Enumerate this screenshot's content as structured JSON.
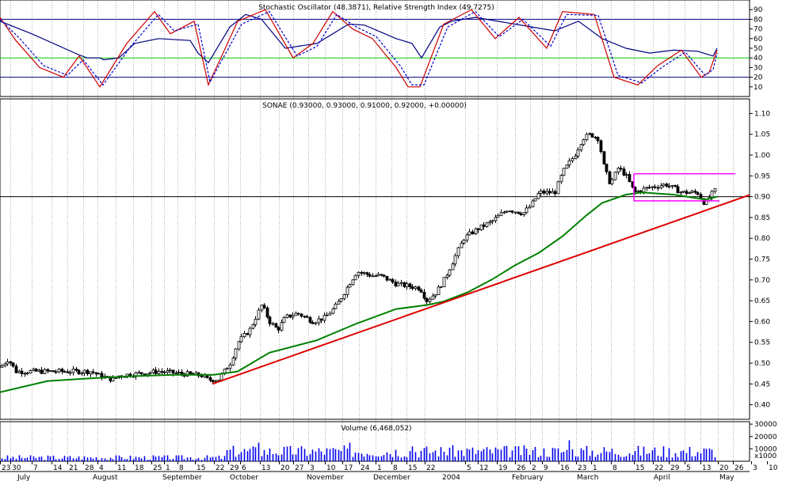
{
  "chart_data": [
    {
      "type": "line",
      "panel": "oscillator",
      "title": "Stochastic Oscillator (48.3871), Relative Strength Index (49.7275)",
      "ylim": [
        0,
        100
      ],
      "y_ticks": [
        "10",
        "20",
        "30",
        "40",
        "50",
        "60",
        "70",
        "80",
        "90"
      ],
      "reference_lines": [
        {
          "value": 80,
          "color": "#000080"
        },
        {
          "value": 20,
          "color": "#000080"
        },
        {
          "value": 40,
          "color": "#00cc00"
        }
      ],
      "series": [
        {
          "color": "#000080",
          "x": [
            0,
            40,
            100,
            110,
            126,
            131,
            150,
            170,
            200,
            240,
            250,
            263,
            290,
            310,
            330,
            360,
            400,
            440,
            460,
            500,
            520,
            532,
            545,
            555,
            570,
            600,
            650,
            700,
            730,
            760,
            790,
            820,
            850,
            880,
            900,
            905
          ],
          "y": [
            78,
            65,
            43,
            40,
            40,
            38,
            40,
            55,
            60,
            58,
            45,
            35,
            72,
            85,
            80,
            50,
            55,
            75,
            74,
            60,
            55,
            40,
            58,
            72,
            78,
            82,
            75,
            68,
            78,
            60,
            50,
            45,
            48,
            47,
            42,
            50
          ]
        },
        {
          "color": "#cc0000",
          "x": [
            0,
            20,
            50,
            80,
            100,
            126,
            160,
            195,
            215,
            245,
            263,
            300,
            335,
            370,
            395,
            420,
            445,
            470,
            500,
            515,
            530,
            560,
            595,
            625,
            655,
            690,
            710,
            750,
            775,
            805,
            830,
            860,
            885,
            895,
            905
          ],
          "y": [
            82,
            58,
            30,
            20,
            42,
            10,
            55,
            88,
            65,
            78,
            12,
            78,
            90,
            40,
            55,
            88,
            70,
            60,
            30,
            10,
            10,
            75,
            90,
            60,
            82,
            50,
            88,
            85,
            20,
            12,
            32,
            48,
            20,
            25,
            48
          ]
        },
        {
          "color": "#0000cc",
          "dash": true,
          "x": [
            0,
            25,
            55,
            85,
            105,
            130,
            165,
            200,
            220,
            250,
            265,
            305,
            340,
            375,
            400,
            425,
            450,
            475,
            505,
            520,
            535,
            565,
            600,
            630,
            660,
            695,
            715,
            755,
            780,
            810,
            835,
            865,
            890,
            900,
            905
          ],
          "y": [
            80,
            60,
            32,
            22,
            38,
            12,
            52,
            85,
            68,
            75,
            15,
            75,
            88,
            42,
            52,
            85,
            72,
            62,
            32,
            12,
            12,
            72,
            88,
            62,
            80,
            52,
            85,
            84,
            22,
            14,
            30,
            46,
            22,
            28,
            45
          ]
        }
      ]
    },
    {
      "type": "candlestick",
      "panel": "price",
      "title": "SONAE (0.93000, 0.93000, 0.91000, 0.92000, +0.00000)",
      "ylim": [
        0.365,
        1.135
      ],
      "y_ticks": [
        "0.40",
        "0.45",
        "0.50",
        "0.55",
        "0.60",
        "0.65",
        "0.70",
        "0.75",
        "0.80",
        "0.85",
        "0.90",
        "0.95",
        "1.00",
        "1.05",
        "1.10"
      ],
      "price_anchors": [
        [
          0,
          0.49
        ],
        [
          10,
          0.51
        ],
        [
          20,
          0.48
        ],
        [
          60,
          0.48
        ],
        [
          90,
          0.48
        ],
        [
          115,
          0.48
        ],
        [
          125,
          0.47
        ],
        [
          142,
          0.46
        ],
        [
          150,
          0.47
        ],
        [
          200,
          0.48
        ],
        [
          255,
          0.47
        ],
        [
          262,
          0.46
        ],
        [
          275,
          0.46
        ],
        [
          290,
          0.5
        ],
        [
          300,
          0.55
        ],
        [
          315,
          0.58
        ],
        [
          330,
          0.64
        ],
        [
          340,
          0.6
        ],
        [
          350,
          0.58
        ],
        [
          360,
          0.61
        ],
        [
          375,
          0.62
        ],
        [
          395,
          0.6
        ],
        [
          410,
          0.61
        ],
        [
          425,
          0.64
        ],
        [
          440,
          0.69
        ],
        [
          450,
          0.72
        ],
        [
          470,
          0.71
        ],
        [
          480,
          0.71
        ],
        [
          500,
          0.69
        ],
        [
          530,
          0.68
        ],
        [
          538,
          0.65
        ],
        [
          550,
          0.67
        ],
        [
          560,
          0.7
        ],
        [
          575,
          0.76
        ],
        [
          585,
          0.8
        ],
        [
          600,
          0.82
        ],
        [
          620,
          0.84
        ],
        [
          640,
          0.87
        ],
        [
          660,
          0.86
        ],
        [
          670,
          0.88
        ],
        [
          680,
          0.91
        ],
        [
          700,
          0.91
        ],
        [
          710,
          0.96
        ],
        [
          725,
          1.0
        ],
        [
          735,
          1.04
        ],
        [
          745,
          1.05
        ],
        [
          755,
          1.04
        ],
        [
          762,
          0.97
        ],
        [
          770,
          0.93
        ],
        [
          780,
          0.97
        ],
        [
          790,
          0.95
        ],
        [
          800,
          0.91
        ],
        [
          815,
          0.92
        ],
        [
          840,
          0.93
        ],
        [
          860,
          0.91
        ],
        [
          880,
          0.91
        ],
        [
          890,
          0.88
        ],
        [
          895,
          0.9
        ],
        [
          905,
          0.92
        ]
      ],
      "moving_average": {
        "color": "#008000",
        "x": [
          0,
          60,
          110,
          160,
          220,
          270,
          300,
          340,
          400,
          450,
          500,
          540,
          560,
          590,
          620,
          650,
          680,
          710,
          740,
          760,
          790,
          810,
          850,
          890,
          905
        ],
        "y": [
          0.43,
          0.457,
          0.463,
          0.468,
          0.472,
          0.472,
          0.48,
          0.525,
          0.555,
          0.595,
          0.63,
          0.64,
          0.648,
          0.67,
          0.7,
          0.735,
          0.765,
          0.805,
          0.855,
          0.885,
          0.905,
          0.91,
          0.905,
          0.893,
          0.9
        ]
      },
      "trendline": {
        "color": "#dd0000",
        "points": [
          [
            268,
            0.45
          ],
          [
            992,
            0.935
          ]
        ]
      },
      "horizontal_line": {
        "value": 0.9,
        "color": "#000000"
      },
      "channel": {
        "color": "#ff00ff",
        "x": [
          800,
          928
        ],
        "y": [
          0.89,
          0.955
        ]
      }
    },
    {
      "type": "bar",
      "panel": "volume",
      "title": "Volume (6,468,052)",
      "ylim": [
        0,
        32000
      ],
      "y_ticks": [
        "10000",
        "20000",
        "30000"
      ],
      "unit": "x1000",
      "spikes": [
        [
          292,
          32000
        ],
        [
          327,
          15000
        ],
        [
          371,
          12000
        ],
        [
          442,
          15000
        ],
        [
          519,
          12000
        ],
        [
          566,
          11000
        ],
        [
          717,
          17000
        ],
        [
          760,
          25000
        ]
      ]
    }
  ],
  "x_axis": {
    "day_ticks": [
      [
        "23",
        0
      ],
      [
        "30",
        13
      ],
      [
        "7",
        40
      ],
      [
        "14",
        65
      ],
      [
        "21",
        85
      ],
      [
        "28",
        105
      ],
      [
        "4",
        123
      ],
      [
        "11",
        146
      ],
      [
        "18",
        168
      ],
      [
        "25",
        191
      ],
      [
        "1",
        207
      ],
      [
        "8",
        224
      ],
      [
        "15",
        246
      ],
      [
        "22",
        270
      ],
      [
        "29",
        288
      ],
      [
        "6",
        303
      ],
      [
        "13",
        328
      ],
      [
        "20",
        352
      ],
      [
        "27",
        370
      ],
      [
        "3",
        389
      ],
      [
        "10",
        410
      ],
      [
        "17",
        432
      ],
      [
        "24",
        453
      ],
      [
        "1",
        474
      ],
      [
        "8",
        494
      ],
      [
        "15",
        513
      ],
      [
        "22",
        536
      ],
      [
        "5",
        587
      ],
      [
        "12",
        603
      ],
      [
        "19",
        627
      ],
      [
        "26",
        650
      ],
      [
        "2",
        669
      ],
      [
        "9",
        684
      ],
      [
        "16",
        705
      ],
      [
        "23",
        727
      ],
      [
        "1",
        746
      ],
      [
        "8",
        771
      ],
      [
        "15",
        800
      ],
      [
        "22",
        824
      ],
      [
        "29",
        844
      ],
      [
        "5",
        864
      ],
      [
        "13",
        884
      ],
      [
        "20",
        906
      ],
      [
        "26",
        925
      ],
      [
        "3",
        948
      ],
      [
        "10",
        968
      ]
    ],
    "month_labels": [
      [
        "July",
        22
      ],
      [
        "August",
        117
      ],
      [
        "September",
        205
      ],
      [
        "October",
        290
      ],
      [
        "November",
        387
      ],
      [
        "December",
        471
      ],
      [
        "2004",
        558
      ],
      [
        "February",
        646
      ],
      [
        "March",
        728
      ],
      [
        "April",
        825
      ],
      [
        "May",
        908
      ]
    ]
  }
}
